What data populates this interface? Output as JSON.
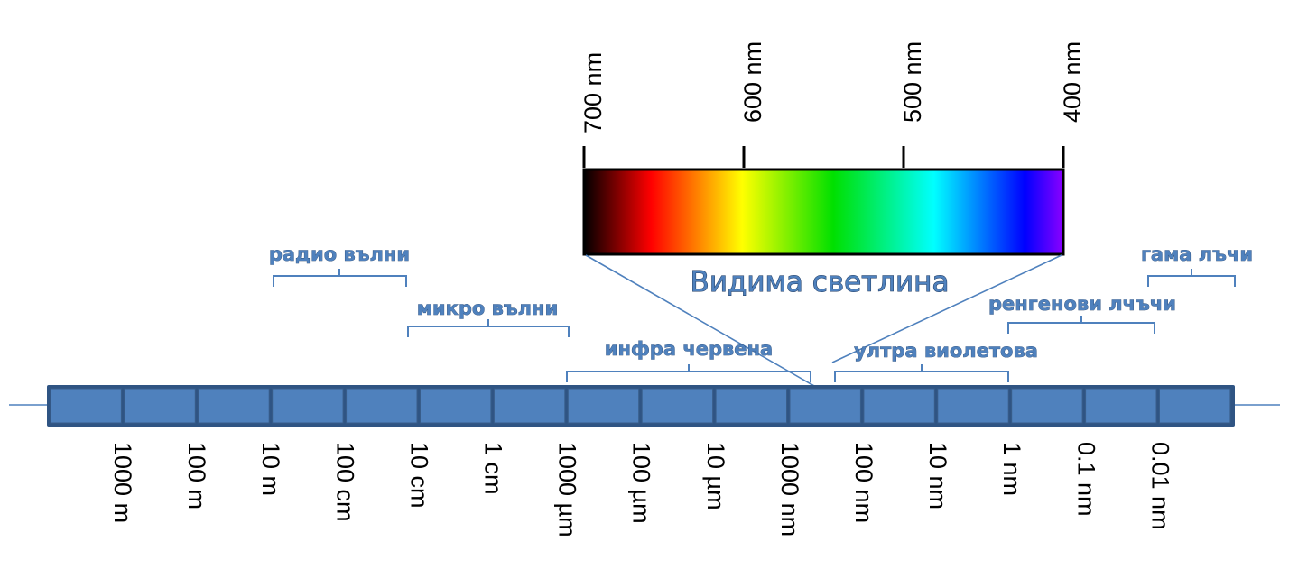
{
  "visible_light": {
    "title": "Видима светлина",
    "gradient_colors": [
      "#000000",
      "#ff0000",
      "#ffff00",
      "#00e000",
      "#00ffff",
      "#0000ff",
      "#8b00ff"
    ],
    "ticks": [
      "700 nm",
      "600 nm",
      "500 nm",
      "400 nm"
    ]
  },
  "bands": [
    {
      "key": "radio",
      "label": "радио вълни"
    },
    {
      "key": "micro",
      "label": "микро вълни"
    },
    {
      "key": "infrared",
      "label": "инфра червена"
    },
    {
      "key": "ultraviolet",
      "label": "ултра виолетова"
    },
    {
      "key": "xray",
      "label": "ренгенови лчъчи"
    },
    {
      "key": "gamma",
      "label": "гама лъчи"
    }
  ],
  "scale_labels": [
    "1000 m",
    "100 m",
    "10 m",
    "100 cm",
    "10 cm",
    "1 cm",
    "1000 µm",
    "100 µm",
    "10 µm",
    "1000 nm",
    "100 nm",
    "10 nm",
    "1 nm",
    "0.1 nm",
    "0.01 nm"
  ],
  "colors": {
    "scale_cell": "#4f81bd",
    "scale_border": "#385d8a",
    "band_label": "#4f81bd",
    "connector": "#4f81bd"
  }
}
